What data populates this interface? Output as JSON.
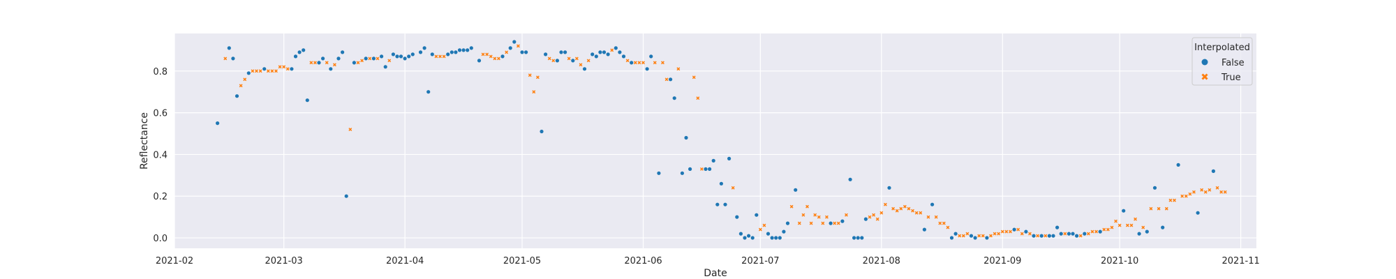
{
  "chart_data": {
    "type": "scatter",
    "xlabel": "Date",
    "ylabel": "Reflectance",
    "xlim": [
      "2021-02-01",
      "2021-11-05"
    ],
    "ylim": [
      -0.05,
      0.98
    ],
    "x_ticks": [
      "2021-02",
      "2021-03",
      "2021-04",
      "2021-05",
      "2021-06",
      "2021-07",
      "2021-08",
      "2021-09",
      "2021-10",
      "2021-11"
    ],
    "x_tick_dates": [
      "2021-02-01",
      "2021-03-01",
      "2021-04-01",
      "2021-05-01",
      "2021-06-01",
      "2021-07-01",
      "2021-08-01",
      "2021-09-01",
      "2021-10-01",
      "2021-11-01"
    ],
    "y_ticks": [
      0.0,
      0.2,
      0.4,
      0.6,
      0.8
    ],
    "y_tick_labels": [
      "0.0",
      "0.2",
      "0.4",
      "0.6",
      "0.8"
    ],
    "grid": true,
    "background": "#eaeaf2",
    "legend": {
      "title": "Interpolated",
      "placement": "top-right",
      "entries": [
        {
          "label": "False",
          "marker": "circle",
          "color": "#1f77b4"
        },
        {
          "label": "True",
          "marker": "x",
          "color": "#ff7f0e"
        }
      ]
    },
    "series": [
      {
        "name": "False",
        "marker": "circle",
        "color": "#1f77b4",
        "points": [
          [
            "2021-02-12",
            0.55
          ],
          [
            "2021-02-15",
            0.91
          ],
          [
            "2021-02-16",
            0.86
          ],
          [
            "2021-02-17",
            0.68
          ],
          [
            "2021-02-20",
            0.79
          ],
          [
            "2021-02-24",
            0.81
          ],
          [
            "2021-03-03",
            0.81
          ],
          [
            "2021-03-04",
            0.87
          ],
          [
            "2021-03-05",
            0.89
          ],
          [
            "2021-03-06",
            0.9
          ],
          [
            "2021-03-07",
            0.66
          ],
          [
            "2021-03-10",
            0.84
          ],
          [
            "2021-03-11",
            0.86
          ],
          [
            "2021-03-13",
            0.81
          ],
          [
            "2021-03-15",
            0.86
          ],
          [
            "2021-03-16",
            0.89
          ],
          [
            "2021-03-17",
            0.2
          ],
          [
            "2021-03-19",
            0.84
          ],
          [
            "2021-03-22",
            0.86
          ],
          [
            "2021-03-24",
            0.86
          ],
          [
            "2021-03-26",
            0.87
          ],
          [
            "2021-03-27",
            0.82
          ],
          [
            "2021-03-29",
            0.88
          ],
          [
            "2021-03-30",
            0.87
          ],
          [
            "2021-03-31",
            0.87
          ],
          [
            "2021-04-01",
            0.86
          ],
          [
            "2021-04-02",
            0.87
          ],
          [
            "2021-04-03",
            0.88
          ],
          [
            "2021-04-05",
            0.89
          ],
          [
            "2021-04-06",
            0.91
          ],
          [
            "2021-04-07",
            0.7
          ],
          [
            "2021-04-08",
            0.88
          ],
          [
            "2021-04-12",
            0.88
          ],
          [
            "2021-04-13",
            0.89
          ],
          [
            "2021-04-14",
            0.89
          ],
          [
            "2021-04-15",
            0.9
          ],
          [
            "2021-04-16",
            0.9
          ],
          [
            "2021-04-17",
            0.9
          ],
          [
            "2021-04-18",
            0.91
          ],
          [
            "2021-04-20",
            0.85
          ],
          [
            "2021-04-26",
            0.87
          ],
          [
            "2021-04-28",
            0.91
          ],
          [
            "2021-04-29",
            0.94
          ],
          [
            "2021-05-01",
            0.89
          ],
          [
            "2021-05-02",
            0.89
          ],
          [
            "2021-05-06",
            0.51
          ],
          [
            "2021-05-07",
            0.88
          ],
          [
            "2021-05-10",
            0.85
          ],
          [
            "2021-05-11",
            0.89
          ],
          [
            "2021-05-12",
            0.89
          ],
          [
            "2021-05-14",
            0.85
          ],
          [
            "2021-05-17",
            0.81
          ],
          [
            "2021-05-19",
            0.88
          ],
          [
            "2021-05-20",
            0.87
          ],
          [
            "2021-05-21",
            0.89
          ],
          [
            "2021-05-22",
            0.89
          ],
          [
            "2021-05-23",
            0.88
          ],
          [
            "2021-05-25",
            0.91
          ],
          [
            "2021-05-26",
            0.89
          ],
          [
            "2021-05-27",
            0.87
          ],
          [
            "2021-05-29",
            0.84
          ],
          [
            "2021-06-02",
            0.81
          ],
          [
            "2021-06-03",
            0.87
          ],
          [
            "2021-06-05",
            0.31
          ],
          [
            "2021-06-08",
            0.76
          ],
          [
            "2021-06-09",
            0.67
          ],
          [
            "2021-06-11",
            0.31
          ],
          [
            "2021-06-12",
            0.48
          ],
          [
            "2021-06-13",
            0.33
          ],
          [
            "2021-06-17",
            0.33
          ],
          [
            "2021-06-18",
            0.33
          ],
          [
            "2021-06-19",
            0.37
          ],
          [
            "2021-06-20",
            0.16
          ],
          [
            "2021-06-21",
            0.26
          ],
          [
            "2021-06-22",
            0.16
          ],
          [
            "2021-06-23",
            0.38
          ],
          [
            "2021-06-25",
            0.1
          ],
          [
            "2021-06-26",
            0.02
          ],
          [
            "2021-06-27",
            0.0
          ],
          [
            "2021-06-28",
            0.01
          ],
          [
            "2021-06-29",
            0.0
          ],
          [
            "2021-06-30",
            0.11
          ],
          [
            "2021-07-03",
            0.02
          ],
          [
            "2021-07-04",
            0.0
          ],
          [
            "2021-07-05",
            0.0
          ],
          [
            "2021-07-06",
            0.0
          ],
          [
            "2021-07-07",
            0.03
          ],
          [
            "2021-07-08",
            0.07
          ],
          [
            "2021-07-10",
            0.23
          ],
          [
            "2021-07-19",
            0.07
          ],
          [
            "2021-07-22",
            0.08
          ],
          [
            "2021-07-24",
            0.28
          ],
          [
            "2021-07-25",
            0.0
          ],
          [
            "2021-07-26",
            0.0
          ],
          [
            "2021-07-27",
            0.0
          ],
          [
            "2021-07-28",
            0.09
          ],
          [
            "2021-08-03",
            0.24
          ],
          [
            "2021-08-12",
            0.04
          ],
          [
            "2021-08-14",
            0.16
          ],
          [
            "2021-08-19",
            0.0
          ],
          [
            "2021-08-20",
            0.02
          ],
          [
            "2021-08-24",
            0.01
          ],
          [
            "2021-08-25",
            0.0
          ],
          [
            "2021-08-28",
            0.0
          ],
          [
            "2021-09-04",
            0.04
          ],
          [
            "2021-09-07",
            0.03
          ],
          [
            "2021-09-09",
            0.01
          ],
          [
            "2021-09-11",
            0.01
          ],
          [
            "2021-09-13",
            0.01
          ],
          [
            "2021-09-14",
            0.01
          ],
          [
            "2021-09-15",
            0.05
          ],
          [
            "2021-09-16",
            0.02
          ],
          [
            "2021-09-18",
            0.02
          ],
          [
            "2021-09-19",
            0.02
          ],
          [
            "2021-09-20",
            0.01
          ],
          [
            "2021-09-22",
            0.02
          ],
          [
            "2021-09-26",
            0.03
          ],
          [
            "2021-10-02",
            0.13
          ],
          [
            "2021-10-06",
            0.02
          ],
          [
            "2021-10-08",
            0.03
          ],
          [
            "2021-10-10",
            0.24
          ],
          [
            "2021-10-12",
            0.05
          ],
          [
            "2021-10-16",
            0.35
          ],
          [
            "2021-10-21",
            0.12
          ],
          [
            "2021-10-25",
            0.32
          ]
        ]
      },
      {
        "name": "True",
        "marker": "x",
        "color": "#ff7f0e",
        "points": [
          [
            "2021-02-14",
            0.86
          ],
          [
            "2021-02-18",
            0.73
          ],
          [
            "2021-02-19",
            0.76
          ],
          [
            "2021-02-21",
            0.8
          ],
          [
            "2021-02-22",
            0.8
          ],
          [
            "2021-02-23",
            0.8
          ],
          [
            "2021-02-25",
            0.8
          ],
          [
            "2021-02-26",
            0.8
          ],
          [
            "2021-02-27",
            0.8
          ],
          [
            "2021-02-28",
            0.82
          ],
          [
            "2021-03-01",
            0.82
          ],
          [
            "2021-03-02",
            0.81
          ],
          [
            "2021-03-08",
            0.84
          ],
          [
            "2021-03-09",
            0.84
          ],
          [
            "2021-03-12",
            0.84
          ],
          [
            "2021-03-14",
            0.83
          ],
          [
            "2021-03-18",
            0.52
          ],
          [
            "2021-03-20",
            0.84
          ],
          [
            "2021-03-21",
            0.85
          ],
          [
            "2021-03-23",
            0.86
          ],
          [
            "2021-03-25",
            0.86
          ],
          [
            "2021-03-28",
            0.85
          ],
          [
            "2021-04-09",
            0.87
          ],
          [
            "2021-04-10",
            0.87
          ],
          [
            "2021-04-11",
            0.87
          ],
          [
            "2021-04-21",
            0.88
          ],
          [
            "2021-04-22",
            0.88
          ],
          [
            "2021-04-23",
            0.87
          ],
          [
            "2021-04-24",
            0.86
          ],
          [
            "2021-04-25",
            0.86
          ],
          [
            "2021-04-27",
            0.89
          ],
          [
            "2021-04-30",
            0.92
          ],
          [
            "2021-05-03",
            0.78
          ],
          [
            "2021-05-04",
            0.7
          ],
          [
            "2021-05-05",
            0.77
          ],
          [
            "2021-05-08",
            0.86
          ],
          [
            "2021-05-09",
            0.85
          ],
          [
            "2021-05-13",
            0.86
          ],
          [
            "2021-05-15",
            0.86
          ],
          [
            "2021-05-16",
            0.83
          ],
          [
            "2021-05-18",
            0.85
          ],
          [
            "2021-05-24",
            0.9
          ],
          [
            "2021-05-28",
            0.85
          ],
          [
            "2021-05-30",
            0.84
          ],
          [
            "2021-05-31",
            0.84
          ],
          [
            "2021-06-01",
            0.84
          ],
          [
            "2021-06-04",
            0.84
          ],
          [
            "2021-06-06",
            0.84
          ],
          [
            "2021-06-07",
            0.76
          ],
          [
            "2021-06-10",
            0.81
          ],
          [
            "2021-06-14",
            0.77
          ],
          [
            "2021-06-15",
            0.67
          ],
          [
            "2021-06-16",
            0.33
          ],
          [
            "2021-06-24",
            0.24
          ],
          [
            "2021-07-01",
            0.04
          ],
          [
            "2021-07-02",
            0.06
          ],
          [
            "2021-07-09",
            0.15
          ],
          [
            "2021-07-11",
            0.07
          ],
          [
            "2021-07-12",
            0.11
          ],
          [
            "2021-07-13",
            0.15
          ],
          [
            "2021-07-14",
            0.07
          ],
          [
            "2021-07-15",
            0.11
          ],
          [
            "2021-07-16",
            0.1
          ],
          [
            "2021-07-17",
            0.07
          ],
          [
            "2021-07-18",
            0.1
          ],
          [
            "2021-07-20",
            0.07
          ],
          [
            "2021-07-21",
            0.07
          ],
          [
            "2021-07-23",
            0.11
          ],
          [
            "2021-07-29",
            0.1
          ],
          [
            "2021-07-30",
            0.11
          ],
          [
            "2021-07-31",
            0.09
          ],
          [
            "2021-08-01",
            0.12
          ],
          [
            "2021-08-02",
            0.16
          ],
          [
            "2021-08-04",
            0.14
          ],
          [
            "2021-08-05",
            0.13
          ],
          [
            "2021-08-06",
            0.14
          ],
          [
            "2021-08-07",
            0.15
          ],
          [
            "2021-08-08",
            0.14
          ],
          [
            "2021-08-09",
            0.13
          ],
          [
            "2021-08-10",
            0.12
          ],
          [
            "2021-08-11",
            0.12
          ],
          [
            "2021-08-13",
            0.1
          ],
          [
            "2021-08-15",
            0.1
          ],
          [
            "2021-08-16",
            0.07
          ],
          [
            "2021-08-17",
            0.07
          ],
          [
            "2021-08-18",
            0.05
          ],
          [
            "2021-08-21",
            0.01
          ],
          [
            "2021-08-22",
            0.01
          ],
          [
            "2021-08-23",
            0.02
          ],
          [
            "2021-08-26",
            0.01
          ],
          [
            "2021-08-27",
            0.01
          ],
          [
            "2021-08-29",
            0.01
          ],
          [
            "2021-08-30",
            0.02
          ],
          [
            "2021-08-31",
            0.02
          ],
          [
            "2021-09-01",
            0.03
          ],
          [
            "2021-09-02",
            0.03
          ],
          [
            "2021-09-03",
            0.03
          ],
          [
            "2021-09-05",
            0.04
          ],
          [
            "2021-09-06",
            0.02
          ],
          [
            "2021-09-08",
            0.02
          ],
          [
            "2021-09-10",
            0.01
          ],
          [
            "2021-09-12",
            0.01
          ],
          [
            "2021-09-17",
            0.02
          ],
          [
            "2021-09-21",
            0.01
          ],
          [
            "2021-09-23",
            0.02
          ],
          [
            "2021-09-24",
            0.03
          ],
          [
            "2021-09-25",
            0.03
          ],
          [
            "2021-09-27",
            0.04
          ],
          [
            "2021-09-28",
            0.04
          ],
          [
            "2021-09-29",
            0.05
          ],
          [
            "2021-09-30",
            0.08
          ],
          [
            "2021-10-01",
            0.06
          ],
          [
            "2021-10-03",
            0.06
          ],
          [
            "2021-10-04",
            0.06
          ],
          [
            "2021-10-05",
            0.09
          ],
          [
            "2021-10-07",
            0.05
          ],
          [
            "2021-10-09",
            0.14
          ],
          [
            "2021-10-11",
            0.14
          ],
          [
            "2021-10-13",
            0.14
          ],
          [
            "2021-10-14",
            0.18
          ],
          [
            "2021-10-15",
            0.18
          ],
          [
            "2021-10-17",
            0.2
          ],
          [
            "2021-10-18",
            0.2
          ],
          [
            "2021-10-19",
            0.21
          ],
          [
            "2021-10-20",
            0.22
          ],
          [
            "2021-10-22",
            0.23
          ],
          [
            "2021-10-23",
            0.22
          ],
          [
            "2021-10-24",
            0.23
          ],
          [
            "2021-10-26",
            0.24
          ],
          [
            "2021-10-27",
            0.22
          ],
          [
            "2021-10-28",
            0.22
          ]
        ]
      }
    ]
  }
}
